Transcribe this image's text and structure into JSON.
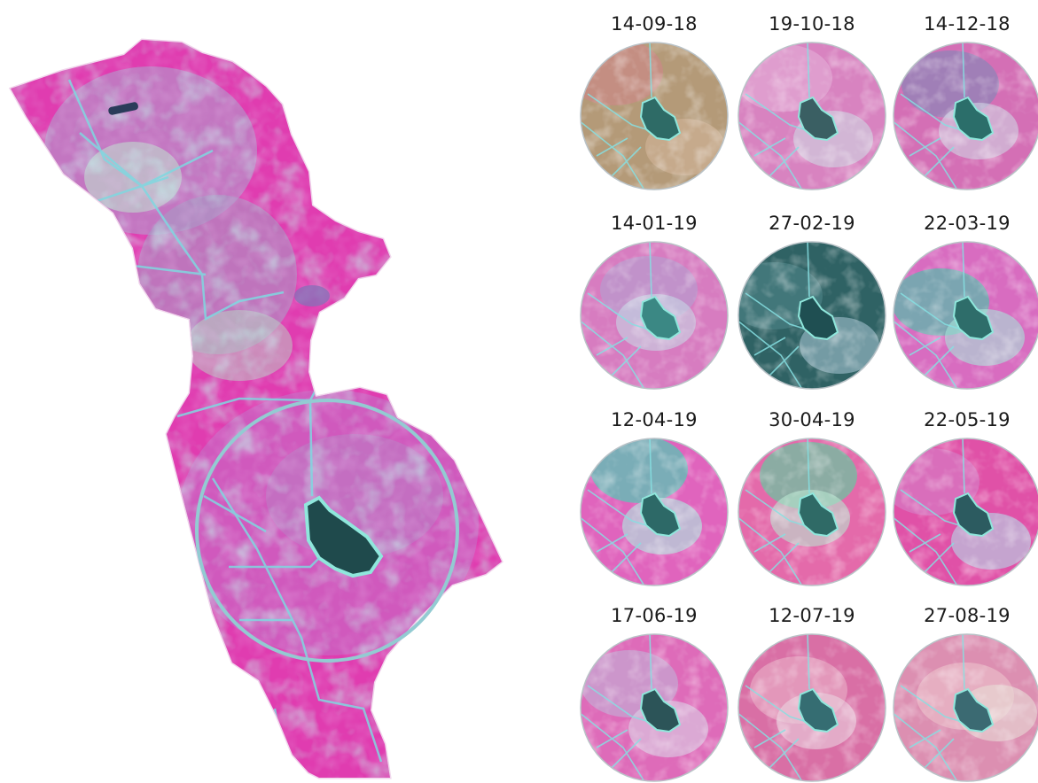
{
  "figure": {
    "overview_map": {
      "has_highlight_circle": true,
      "highlight_color": "#93cbd2"
    },
    "thumbnails": [
      {
        "date": "14-09-18",
        "palette": {
          "base": "#b49a78",
          "mid": "#c98a86",
          "light": "#d2b59a",
          "water": "#2e6b66"
        }
      },
      {
        "date": "19-10-18",
        "palette": {
          "base": "#d883c0",
          "mid": "#e2a6d3",
          "light": "#cfd9e3",
          "water": "#3a5f63"
        }
      },
      {
        "date": "14-12-18",
        "palette": {
          "base": "#d46fb5",
          "mid": "#8f84b8",
          "light": "#cfd6e4",
          "water": "#2b6e6a"
        }
      },
      {
        "date": "14-01-19",
        "palette": {
          "base": "#d77cc0",
          "mid": "#b99acd",
          "light": "#c7d7e4",
          "water": "#3b8884"
        }
      },
      {
        "date": "27-02-19",
        "palette": {
          "base": "#2f6264",
          "mid": "#4a7f82",
          "light": "#a3c2cf",
          "water": "#1f4f52"
        }
      },
      {
        "date": "22-03-19",
        "palette": {
          "base": "#d86cc0",
          "mid": "#5cb8ac",
          "light": "#a7e4d8",
          "water": "#2e6d6a"
        }
      },
      {
        "date": "12-04-19",
        "palette": {
          "base": "#e064bd",
          "mid": "#58c6b6",
          "light": "#a8f0e1",
          "water": "#2d6967"
        }
      },
      {
        "date": "30-04-19",
        "palette": {
          "base": "#e46aaa",
          "mid": "#6ec3a0",
          "light": "#b9e6d0",
          "water": "#2f6a66"
        }
      },
      {
        "date": "22-05-19",
        "palette": {
          "base": "#e051a7",
          "mid": "#d778c2",
          "light": "#b2dcea",
          "water": "#2c5b60"
        }
      },
      {
        "date": "17-06-19",
        "palette": {
          "base": "#de6bb9",
          "mid": "#c5a4d2",
          "light": "#d8d2e6",
          "water": "#2c5458"
        }
      },
      {
        "date": "12-07-19",
        "palette": {
          "base": "#d96fa5",
          "mid": "#e6a4c2",
          "light": "#e9d4e0",
          "water": "#356d72"
        }
      },
      {
        "date": "27-08-19",
        "palette": {
          "base": "#dc8fb1",
          "mid": "#e9b8c7",
          "light": "#e8dcd6",
          "water": "#3b6a72"
        }
      }
    ]
  }
}
